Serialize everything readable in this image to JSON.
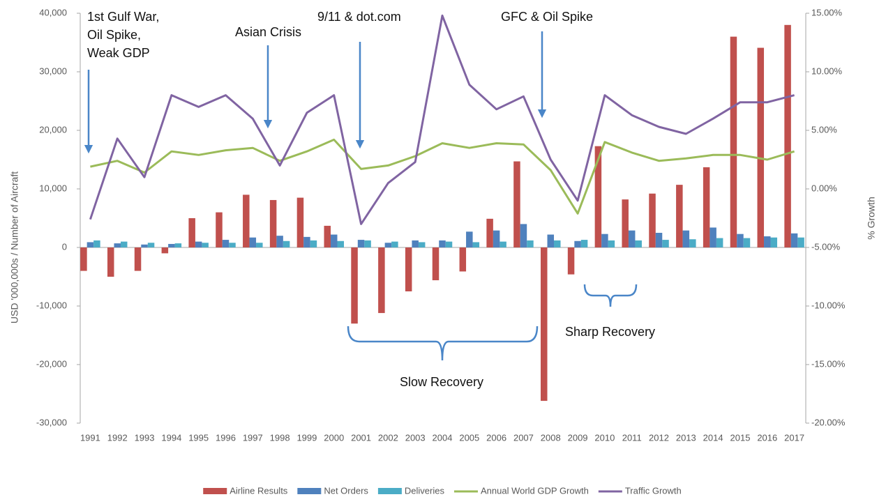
{
  "chart_data": {
    "type": "bar_line",
    "y_axis_label": "USD '000,000s / Number of Aircraft",
    "y2_axis_label": "% Growth",
    "categories": [
      "1991",
      "1992",
      "1993",
      "1994",
      "1995",
      "1996",
      "1997",
      "1998",
      "1999",
      "2000",
      "2001",
      "2002",
      "2003",
      "2004",
      "2005",
      "2006",
      "2007",
      "2008",
      "2009",
      "2010",
      "2011",
      "2012",
      "2013",
      "2014",
      "2015",
      "2016",
      "2017"
    ],
    "series": [
      {
        "name": "Airline Results",
        "kind": "bar",
        "color": "#c0504d",
        "values": [
          -4000,
          -5000,
          -4000,
          -1000,
          5000,
          6000,
          9000,
          8100,
          8500,
          3700,
          -13000,
          -11200,
          -7500,
          -5600,
          -4100,
          4900,
          14700,
          -26200,
          -4600,
          17300,
          8200,
          9200,
          10700,
          13700,
          36000,
          34100,
          38000
        ]
      },
      {
        "name": "Net Orders",
        "kind": "bar",
        "color": "#4f81bd",
        "values": [
          900,
          700,
          500,
          600,
          1000,
          1300,
          1700,
          2000,
          1800,
          2200,
          1300,
          800,
          1200,
          1200,
          2700,
          2900,
          4000,
          2200,
          1100,
          2300,
          2900,
          2500,
          2900,
          3400,
          2300,
          1900,
          2400
        ]
      },
      {
        "name": "Deliveries",
        "kind": "bar",
        "color": "#4bacc6",
        "values": [
          1200,
          1000,
          800,
          700,
          800,
          800,
          800,
          1100,
          1200,
          1100,
          1200,
          1000,
          900,
          1000,
          900,
          1000,
          1200,
          1200,
          1300,
          1200,
          1200,
          1300,
          1400,
          1600,
          1600,
          1700,
          1700
        ]
      },
      {
        "name": "Annual World GDP Growth",
        "kind": "line",
        "axis": "y2",
        "color": "#9bbb59",
        "values": [
          1.9,
          2.4,
          1.4,
          3.2,
          2.9,
          3.3,
          3.5,
          2.4,
          3.2,
          4.2,
          1.7,
          2.0,
          2.8,
          3.9,
          3.5,
          3.9,
          3.8,
          1.6,
          -2.1,
          4.0,
          3.1,
          2.4,
          2.6,
          2.9,
          2.9,
          2.5,
          3.2
        ]
      },
      {
        "name": "Traffic Growth",
        "kind": "line",
        "axis": "y2",
        "color": "#8064a2",
        "values": [
          -2.6,
          4.3,
          1.0,
          8.0,
          7.0,
          8.0,
          6.0,
          2.0,
          6.5,
          8.0,
          -3.0,
          0.5,
          2.3,
          14.8,
          8.9,
          6.8,
          7.9,
          2.5,
          -1.0,
          8.0,
          6.3,
          5.3,
          4.7,
          6.0,
          7.4,
          7.4,
          8.0
        ]
      }
    ],
    "ylim": [
      -30000,
      40000
    ],
    "yticks": [
      {
        "value": -30000,
        "label": "-30,000"
      },
      {
        "value": -20000,
        "label": "-20,000"
      },
      {
        "value": -10000,
        "label": "-10,000"
      },
      0,
      {
        "value": 10000,
        "label": "10,000"
      },
      {
        "value": 20000,
        "label": "20,000"
      },
      {
        "value": 30000,
        "label": "30,000"
      },
      {
        "value": 40000,
        "label": "40,000"
      }
    ],
    "y2lim": [
      -20,
      15
    ],
    "y2ticks": [
      {
        "value": -20,
        "label": "-20.00%"
      },
      {
        "value": -15,
        "label": "-15.00%"
      },
      {
        "value": -10,
        "label": "-10.00%"
      },
      {
        "value": -5,
        "label": "-5.00%"
      },
      {
        "value": 0,
        "label": "0.00%"
      },
      {
        "value": 5,
        "label": "5.00%"
      },
      {
        "value": 10,
        "label": "10.00%"
      },
      {
        "value": 15,
        "label": "15.00%"
      }
    ],
    "annotations": [
      {
        "lines": [
          "1st Gulf War,",
          "Oil Spike,",
          "Weak GDP"
        ]
      },
      {
        "lines": [
          "Asian Crisis"
        ]
      },
      {
        "lines": [
          "9/11 & dot.com"
        ]
      },
      {
        "lines": [
          "GFC & Oil Spike"
        ]
      },
      {
        "lines": [
          "Sharp Recovery"
        ]
      },
      {
        "lines": [
          "Slow Recovery"
        ]
      }
    ],
    "legend": "bottom"
  }
}
